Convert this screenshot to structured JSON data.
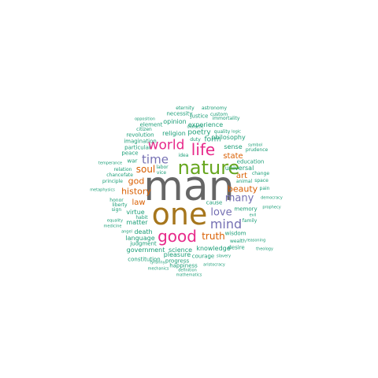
{
  "cloud": {
    "words": [
      {
        "text": "man",
        "color": "gray"
      },
      {
        "text": "one",
        "color": "gold"
      },
      {
        "text": "nature",
        "color": "green"
      },
      {
        "text": "life",
        "color": "pink"
      },
      {
        "text": "world",
        "color": "pink"
      },
      {
        "text": "good",
        "color": "pink"
      },
      {
        "text": "mind",
        "color": "purple"
      },
      {
        "text": "time",
        "color": "purple"
      },
      {
        "text": "many",
        "color": "purple"
      },
      {
        "text": "love",
        "color": "purple"
      },
      {
        "text": "soul",
        "color": "orange"
      },
      {
        "text": "god",
        "color": "orange"
      },
      {
        "text": "history",
        "color": "orange"
      },
      {
        "text": "beauty",
        "color": "orange"
      },
      {
        "text": "truth",
        "color": "orange"
      },
      {
        "text": "state",
        "color": "orange"
      },
      {
        "text": "art",
        "color": "orange"
      },
      {
        "text": "law",
        "color": "orange"
      },
      {
        "text": "form",
        "color": "teal"
      },
      {
        "text": "poetry",
        "color": "teal"
      },
      {
        "text": "religion",
        "color": "teal"
      },
      {
        "text": "opinion",
        "color": "teal"
      },
      {
        "text": "experience",
        "color": "teal"
      },
      {
        "text": "philosophy",
        "color": "teal"
      },
      {
        "text": "sense",
        "color": "teal"
      },
      {
        "text": "education",
        "color": "teal"
      },
      {
        "text": "universal",
        "color": "teal"
      },
      {
        "text": "revolution",
        "color": "teal"
      },
      {
        "text": "imagination",
        "color": "teal"
      },
      {
        "text": "particular",
        "color": "teal"
      },
      {
        "text": "peace",
        "color": "teal"
      },
      {
        "text": "war",
        "color": "teal"
      },
      {
        "text": "principle",
        "color": "teal"
      },
      {
        "text": "relation",
        "color": "teal"
      },
      {
        "text": "chance",
        "color": "teal"
      },
      {
        "text": "fate",
        "color": "teal"
      },
      {
        "text": "honor",
        "color": "teal"
      },
      {
        "text": "liberty",
        "color": "teal"
      },
      {
        "text": "sign",
        "color": "teal"
      },
      {
        "text": "virtue",
        "color": "teal"
      },
      {
        "text": "matter",
        "color": "teal"
      },
      {
        "text": "habit",
        "color": "teal"
      },
      {
        "text": "death",
        "color": "teal"
      },
      {
        "text": "language",
        "color": "teal"
      },
      {
        "text": "judgment",
        "color": "teal"
      },
      {
        "text": "government",
        "color": "teal"
      },
      {
        "text": "science",
        "color": "teal"
      },
      {
        "text": "pleasure",
        "color": "teal"
      },
      {
        "text": "constitution",
        "color": "teal"
      },
      {
        "text": "progress",
        "color": "teal"
      },
      {
        "text": "happiness",
        "color": "teal"
      },
      {
        "text": "courage",
        "color": "teal"
      },
      {
        "text": "knowledge",
        "color": "teal"
      },
      {
        "text": "wisdom",
        "color": "teal"
      },
      {
        "text": "memory",
        "color": "teal"
      },
      {
        "text": "cause",
        "color": "teal"
      },
      {
        "text": "family",
        "color": "teal"
      },
      {
        "text": "wealth",
        "color": "teal"
      },
      {
        "text": "desire",
        "color": "teal"
      },
      {
        "text": "necessity",
        "color": "teal"
      },
      {
        "text": "justice",
        "color": "teal"
      },
      {
        "text": "element",
        "color": "teal"
      },
      {
        "text": "citizen",
        "color": "teal"
      },
      {
        "text": "eternity",
        "color": "teal"
      },
      {
        "text": "astronomy",
        "color": "teal"
      },
      {
        "text": "custom",
        "color": "teal"
      },
      {
        "text": "immortality",
        "color": "teal"
      },
      {
        "text": "opposition",
        "color": "teal"
      },
      {
        "text": "dialectic",
        "color": "teal"
      },
      {
        "text": "duty",
        "color": "teal"
      },
      {
        "text": "idea",
        "color": "teal"
      },
      {
        "text": "quality",
        "color": "teal"
      },
      {
        "text": "logic",
        "color": "teal"
      },
      {
        "text": "symbol",
        "color": "teal"
      },
      {
        "text": "prudence",
        "color": "teal"
      },
      {
        "text": "labor",
        "color": "teal"
      },
      {
        "text": "vice",
        "color": "teal"
      },
      {
        "text": "animal",
        "color": "teal"
      },
      {
        "text": "change",
        "color": "teal"
      },
      {
        "text": "space",
        "color": "teal"
      },
      {
        "text": "pain",
        "color": "teal"
      },
      {
        "text": "temperance",
        "color": "teal"
      },
      {
        "text": "metaphysics",
        "color": "teal"
      },
      {
        "text": "democracy",
        "color": "teal"
      },
      {
        "text": "prophecy",
        "color": "teal"
      },
      {
        "text": "evil",
        "color": "teal"
      },
      {
        "text": "equality",
        "color": "teal"
      },
      {
        "text": "medicine",
        "color": "teal"
      },
      {
        "text": "angel",
        "color": "teal"
      },
      {
        "text": "reasoning",
        "color": "teal"
      },
      {
        "text": "theology",
        "color": "teal"
      },
      {
        "text": "tyranny",
        "color": "teal"
      },
      {
        "text": "slavery",
        "color": "teal"
      },
      {
        "text": "mechanics",
        "color": "teal"
      },
      {
        "text": "definition",
        "color": "teal"
      },
      {
        "text": "aristocracy",
        "color": "teal"
      },
      {
        "text": "mathematics",
        "color": "teal"
      }
    ]
  }
}
